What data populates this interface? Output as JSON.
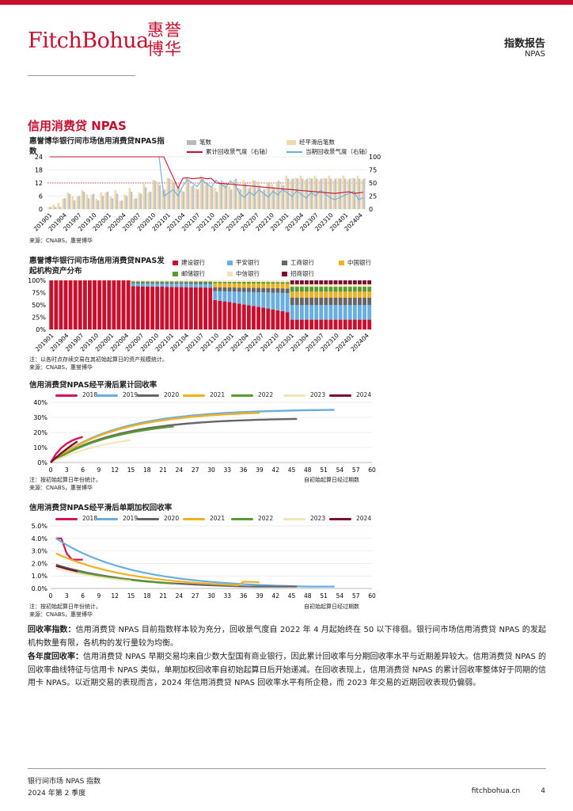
{
  "header": {
    "logo_en": "FitchBohua",
    "logo_cn": "惠誉博华",
    "doc_type": "指数报告",
    "doc_sub": "NPAS"
  },
  "section_title": "信用消费贷 NPAS",
  "chart1": {
    "title": "惠誉博华银行间市场信用消费贷NPAS指数",
    "source": "来源：CNABS，惠誉博华",
    "legend": [
      "笔数",
      "经平滑后笔数",
      "累计回收景气度（右轴）",
      "当期回收景气度（右轴）"
    ],
    "yticks_left": [
      "24",
      "18",
      "12",
      "6",
      "0"
    ],
    "yticks_right": [
      "100",
      "75",
      "50",
      "25",
      "0"
    ],
    "xticks": [
      "201901",
      "201904",
      "201907",
      "201910",
      "202001",
      "202004",
      "202007",
      "202010",
      "202101",
      "202104",
      "202107",
      "202110",
      "202201",
      "202204",
      "202207",
      "202210",
      "202301",
      "202304",
      "202307",
      "202310",
      "202401",
      "202404"
    ]
  },
  "chart2": {
    "title": "惠誉博华银行间市场信用消费贷NPAS发起机构资产分布",
    "note": "注：以各时点存续交易在其初始起算日的资产规模统计。",
    "source": "来源：CNABS，惠誉博华",
    "legend": [
      "建设银行",
      "平安银行",
      "工商银行",
      "中国银行",
      "邮储银行",
      "中信银行",
      "招商银行"
    ],
    "yticks": [
      "100%",
      "75%",
      "50%",
      "25%",
      "0%"
    ],
    "xticks": [
      "201901",
      "201904",
      "201907",
      "201910",
      "202001",
      "202004",
      "202007",
      "202010",
      "202101",
      "202104",
      "202107",
      "202110",
      "202201",
      "202204",
      "202207",
      "202210",
      "202301",
      "202304",
      "202307",
      "202310",
      "202401",
      "202404"
    ]
  },
  "chart3": {
    "title": "信用消费贷NPAS经平滑后累计回收率",
    "legend": [
      "2018",
      "2019",
      "2020",
      "2021",
      "2022",
      "2023",
      "2024"
    ],
    "yticks": [
      "40%",
      "30%",
      "20%",
      "10%",
      "0%"
    ],
    "xticks": [
      "0",
      "3",
      "6",
      "9",
      "12",
      "15",
      "18",
      "21",
      "24",
      "27",
      "30",
      "33",
      "36",
      "39",
      "42",
      "45",
      "48",
      "51",
      "54",
      "57",
      "60"
    ],
    "xaxis_label": "自初始起算日经过期数",
    "note": "注：按初始起算日年份统计。",
    "source": "来源：CNABS，惠誉博华"
  },
  "chart4": {
    "title": "信用消费贷NPAS经平滑后单期加权回收率",
    "legend": [
      "2018",
      "2019",
      "2020",
      "2021",
      "2022",
      "2023",
      "2024"
    ],
    "yticks": [
      "5.0%",
      "4.0%",
      "3.0%",
      "2.0%",
      "1.0%",
      "0.0%"
    ],
    "xticks": [
      "0",
      "3",
      "6",
      "9",
      "12",
      "15",
      "18",
      "21",
      "24",
      "27",
      "30",
      "33",
      "36",
      "39",
      "42",
      "45",
      "48",
      "51",
      "54",
      "57",
      "60"
    ],
    "xaxis_label": "自初始起算日经过期数",
    "note": "注：按初始起算日年份统计。",
    "source": "来源：CNABS，惠誉博华"
  },
  "paragraphs": [
    {
      "head": "回收率指数：",
      "text": "信用消费贷 NPAS 目前指数样本较为充分，回收景气度自 2022 年 4 月起始终在 50 以下徘徊。银行间市场信用消费贷 NPAS 的发起机构数量有限，各机构的发行量较为均衡。"
    },
    {
      "head": "各年度回收率：",
      "text": "信用消费贷 NPAS 早期交易均来自少数大型国有商业银行，因此累计回收率与分期回收率水平与近期差异较大。信用消费贷 NPAS 的回收率曲线特征与信用卡 NPAS 类似，单期加权回收率自初始起算日后开始递减。在回收表现上，信用消费贷 NPAS 的累计回收率整体好于同期的信用卡 NPAS。以近期交易的表现而言，2024 年信用消费贷 NPAS 回收率水平有所企稳，而 2023 年交易的近期回收表现仍偏弱。"
    }
  ],
  "footer": {
    "line1": "银行间市场 NPAS 指数",
    "line2": "2024 年第 2 季度",
    "site": "fitchbohua.cn",
    "page": "4"
  },
  "colors": {
    "brand": "#c8102e",
    "y2018": "#d4145a",
    "y2019": "#6aaee0",
    "y2020": "#666666",
    "y2021": "#f0b020",
    "y2022": "#5a9a32",
    "y2023": "#f3e3b8",
    "y2024": "#7a1030"
  }
}
